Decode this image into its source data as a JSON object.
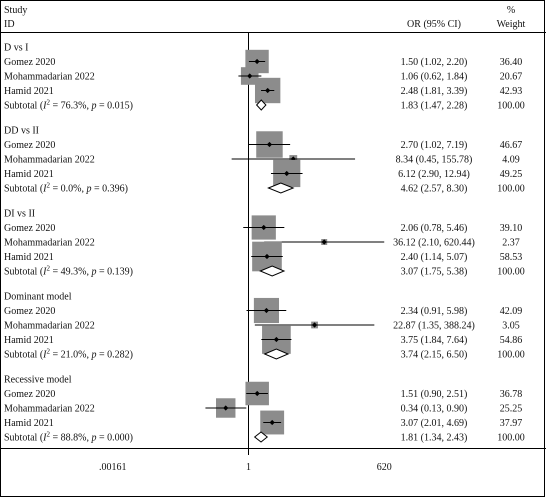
{
  "header": {
    "col1_line1": "Study",
    "col1_line2": "ID",
    "or_label": "OR (95% CI)",
    "weight_line1": "%",
    "weight_line2": "Weight"
  },
  "chart_data": {
    "type": "forest",
    "x_scale": "log",
    "reference_line": 1,
    "x_ticks": [
      ".00161",
      "1",
      "620"
    ],
    "x_tick_values": [
      0.00161,
      1,
      620
    ],
    "groups": [
      {
        "name": "D vs I",
        "studies": [
          {
            "study": "Gomez 2020",
            "or": 1.5,
            "lo": 1.02,
            "hi": 2.2,
            "ci_text": "1.50 (1.02, 2.20)",
            "weight": "36.40"
          },
          {
            "study": "Mohammadarian 2022",
            "or": 1.06,
            "lo": 0.62,
            "hi": 1.84,
            "ci_text": "1.06 (0.62, 1.84)",
            "weight": "20.67"
          },
          {
            "study": "Hamid 2021",
            "or": 2.48,
            "lo": 1.81,
            "hi": 3.39,
            "ci_text": "2.48 (1.81, 3.39)",
            "weight": "42.93"
          }
        ],
        "subtotal": {
          "label": "Subtotal (I² = 76.3%, p = 0.015)",
          "or": 1.83,
          "lo": 1.47,
          "hi": 2.28,
          "ci_text": "1.83 (1.47, 2.28)",
          "weight": "100.00"
        }
      },
      {
        "name": "DD vs II",
        "studies": [
          {
            "study": "Gomez 2020",
            "or": 2.7,
            "lo": 1.02,
            "hi": 7.19,
            "ci_text": "2.70 (1.02, 7.19)",
            "weight": "46.67"
          },
          {
            "study": "Mohammadarian 2022",
            "or": 8.34,
            "lo": 0.45,
            "hi": 155.78,
            "ci_text": "8.34 (0.45, 155.78)",
            "weight": "4.09"
          },
          {
            "study": "Hamid 2021",
            "or": 6.12,
            "lo": 2.9,
            "hi": 12.94,
            "ci_text": "6.12 (2.90, 12.94)",
            "weight": "49.25"
          }
        ],
        "subtotal": {
          "label": "Subtotal (I² = 0.0%, p = 0.396)",
          "or": 4.62,
          "lo": 2.57,
          "hi": 8.3,
          "ci_text": "4.62 (2.57, 8.30)",
          "weight": "100.00"
        }
      },
      {
        "name": "DI vs II",
        "studies": [
          {
            "study": "Gomez 2020",
            "or": 2.06,
            "lo": 0.78,
            "hi": 5.46,
            "ci_text": "2.06 (0.78, 5.46)",
            "weight": "39.10"
          },
          {
            "study": "Mohammadarian 2022",
            "or": 36.12,
            "lo": 2.1,
            "hi": 620.44,
            "ci_text": "36.12 (2.10, 620.44)",
            "weight": "2.37"
          },
          {
            "study": "Hamid 2021",
            "or": 2.4,
            "lo": 1.14,
            "hi": 5.07,
            "ci_text": "2.40 (1.14, 5.07)",
            "weight": "58.53"
          }
        ],
        "subtotal": {
          "label": "Subtotal (I² = 49.3%, p = 0.139)",
          "or": 3.07,
          "lo": 1.75,
          "hi": 5.38,
          "ci_text": "3.07 (1.75, 5.38)",
          "weight": "100.00"
        }
      },
      {
        "name": "Dominant model",
        "studies": [
          {
            "study": "Gomez 2020",
            "or": 2.34,
            "lo": 0.91,
            "hi": 5.98,
            "ci_text": "2.34 (0.91, 5.98)",
            "weight": "42.09"
          },
          {
            "study": "Mohammadarian 2022",
            "or": 22.87,
            "lo": 1.35,
            "hi": 388.24,
            "ci_text": "22.87 (1.35, 388.24)",
            "weight": "3.05"
          },
          {
            "study": "Hamid 2021",
            "or": 3.75,
            "lo": 1.84,
            "hi": 7.64,
            "ci_text": "3.75 (1.84, 7.64)",
            "weight": "54.86"
          }
        ],
        "subtotal": {
          "label": "Subtotal (I² = 21.0%, p = 0.282)",
          "or": 3.74,
          "lo": 2.15,
          "hi": 6.5,
          "ci_text": "3.74 (2.15, 6.50)",
          "weight": "100.00"
        }
      },
      {
        "name": "Recessive model",
        "studies": [
          {
            "study": "Gomez 2020",
            "or": 1.51,
            "lo": 0.9,
            "hi": 2.51,
            "ci_text": "1.51 (0.90, 2.51)",
            "weight": "36.78"
          },
          {
            "study": "Mohammadarian 2022",
            "or": 0.34,
            "lo": 0.13,
            "hi": 0.9,
            "ci_text": "0.34 (0.13, 0.90)",
            "weight": "25.25"
          },
          {
            "study": "Hamid 2021",
            "or": 3.07,
            "lo": 2.01,
            "hi": 4.69,
            "ci_text": "3.07 (2.01, 4.69)",
            "weight": "37.97"
          }
        ],
        "subtotal": {
          "label": "Subtotal (I² = 88.8%, p = 0.000)",
          "or": 1.81,
          "lo": 1.34,
          "hi": 2.43,
          "ci_text": "1.81 (1.34, 2.43)",
          "weight": "100.00"
        }
      }
    ],
    "colors": {
      "weight_box": "#8c8c8c",
      "marker": "#000000",
      "line": "#000000"
    }
  }
}
